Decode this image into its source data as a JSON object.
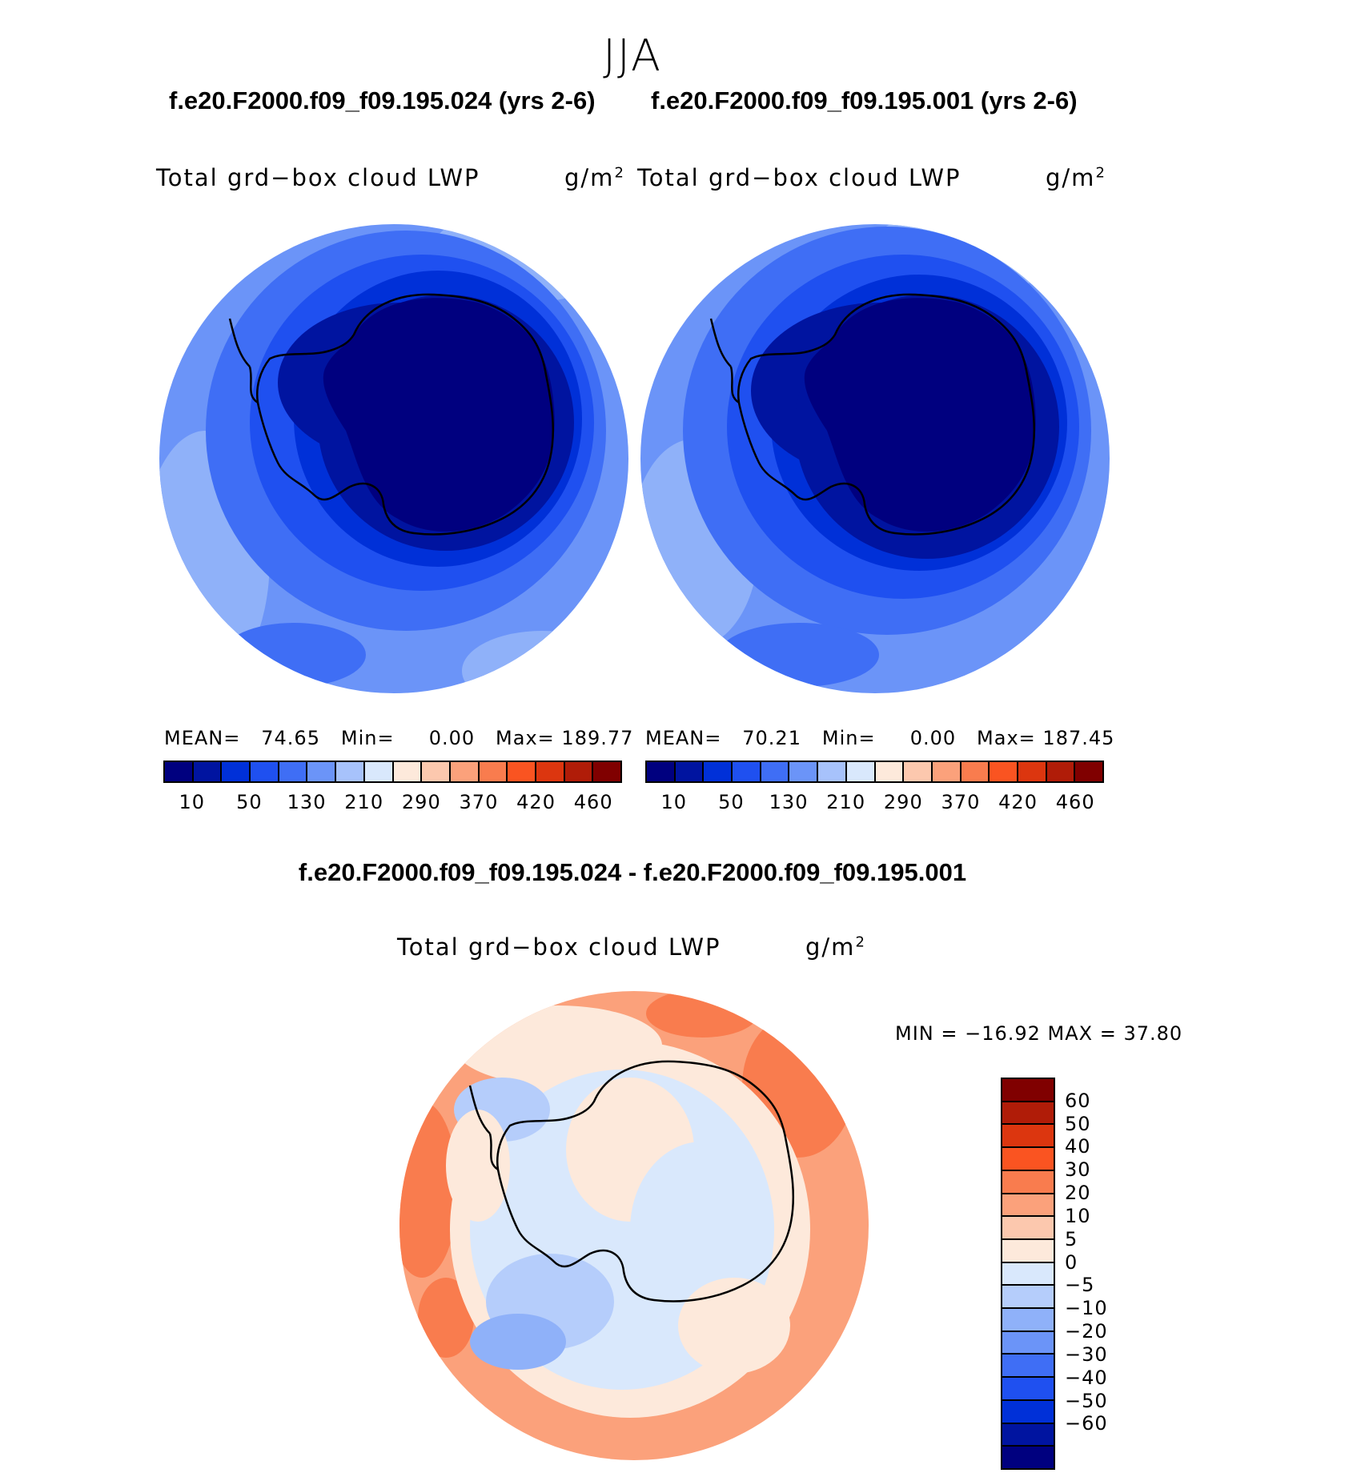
{
  "season": "JJA",
  "panels": [
    {
      "case": "f.e20.F2000.f09_f09.195.024 (yrs 2-6)",
      "variable": "Total grd−box cloud LWP",
      "units_base": "g/m",
      "units_sup": "2",
      "stats": {
        "mean_label": "MEAN=",
        "mean": "74.65",
        "min_label": "Min=",
        "min": "0.00",
        "max_label": "Max=",
        "max": "189.77"
      }
    },
    {
      "case": "f.e20.F2000.f09_f09.195.001 (yrs 2-6)",
      "variable": "Total grd−box cloud LWP",
      "units_base": "g/m",
      "units_sup": "2",
      "stats": {
        "mean_label": "MEAN=",
        "mean": "70.21",
        "min_label": "Min=",
        "min": "0.00",
        "max_label": "Max=",
        "max": "187.45"
      }
    }
  ],
  "field_colorbar": {
    "colors": [
      "#00007f",
      "#0014a0",
      "#0030d8",
      "#1f50f0",
      "#3f6ef5",
      "#6b94f8",
      "#a7c2fb",
      "#d9e8fc",
      "#fde9db",
      "#fcc8ae",
      "#fba17b",
      "#f97c4e",
      "#fa5421",
      "#dc360f",
      "#b01c08",
      "#800000"
    ],
    "tick_labels": [
      "10",
      "50",
      "130",
      "210",
      "290",
      "370",
      "420",
      "460"
    ]
  },
  "difference": {
    "title": "f.e20.F2000.f09_f09.195.024 - f.e20.F2000.f09_f09.195.001",
    "variable": "Total grd−box cloud LWP",
    "units_base": "g/m",
    "units_sup": "2",
    "minmax": "MIN = −16.92 MAX =   37.80",
    "colors": [
      "#800000",
      "#b01c08",
      "#dc360f",
      "#fa5421",
      "#f97c4e",
      "#fba17b",
      "#fcc8ae",
      "#fde9db",
      "#d9e8fc",
      "#b5cdfb",
      "#8fb1f9",
      "#6b94f8",
      "#3f6ef5",
      "#1f50f0",
      "#0030d8",
      "#0014a0",
      "#00007f"
    ],
    "tick_labels": [
      "60",
      "50",
      "40",
      "30",
      "20",
      "10",
      "5",
      "0",
      "−5",
      "−10",
      "−20",
      "−30",
      "−40",
      "−50",
      "−60"
    ]
  },
  "map_colors": {
    "field_outer": "#6b94f8",
    "field_ring_1": "#3f6ef5",
    "field_ring_2": "#1f50f0",
    "field_ring_3": "#0030d8",
    "field_ring_4": "#0014a0",
    "field_core": "#00007f",
    "field_light_patch": "#8fb1f9",
    "diff_positive_strong": "#f97c4e",
    "diff_positive": "#fba17b",
    "diff_positive_weak": "#fde9db",
    "diff_negative_weak": "#d9e8fc",
    "diff_negative": "#b5cdfb",
    "diff_negative_strong": "#8fb1f9",
    "coastline": "#000000"
  }
}
